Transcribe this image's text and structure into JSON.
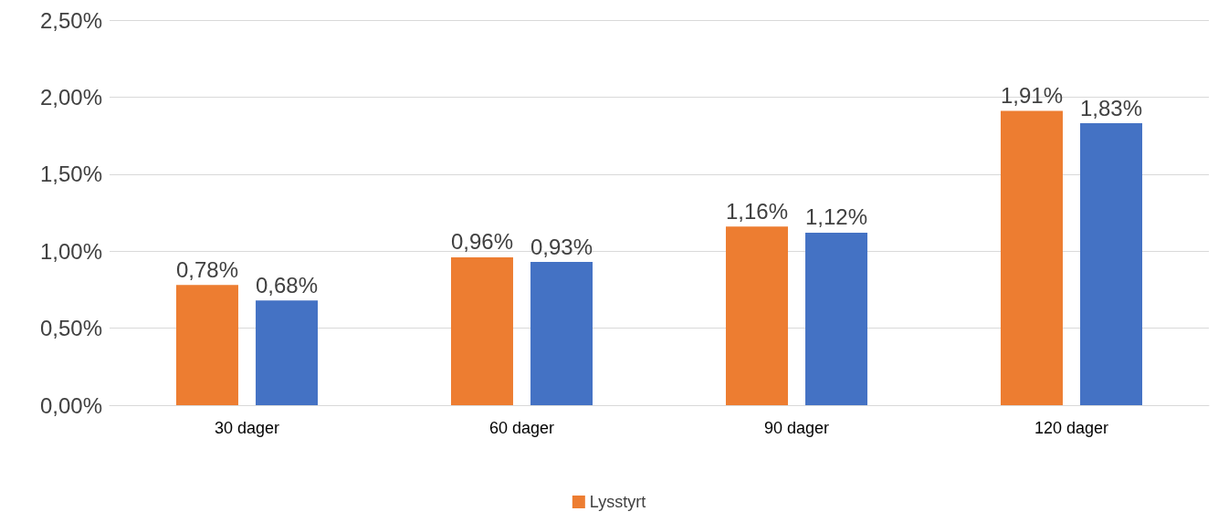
{
  "chart_data": {
    "type": "bar",
    "categories": [
      "30 dager",
      "60 dager",
      "90 dager",
      "120 dager"
    ],
    "series": [
      {
        "name": "Lysstyrt",
        "color": "#ed7d31",
        "values": [
          0.78,
          0.96,
          1.16,
          1.91
        ],
        "value_labels": [
          "0,78%",
          "0,96%",
          "1,16%",
          "1,91%"
        ]
      },
      {
        "color": "#4472c4",
        "values": [
          0.68,
          0.93,
          1.12,
          1.83
        ],
        "value_labels": [
          "0,68%",
          "0,93%",
          "1,12%",
          "1,83%"
        ]
      }
    ],
    "ylim": [
      0,
      2.5
    ],
    "yticks": [
      {
        "value": 0,
        "label": "0,00%"
      },
      {
        "value": 0.5,
        "label": "0,50%"
      },
      {
        "value": 1,
        "label": "1,00%"
      },
      {
        "value": 1.5,
        "label": "1,50%"
      },
      {
        "value": 2,
        "label": "2,00%"
      },
      {
        "value": 2.5,
        "label": "2,50%"
      }
    ],
    "grid": "y",
    "legend": "bottom"
  }
}
